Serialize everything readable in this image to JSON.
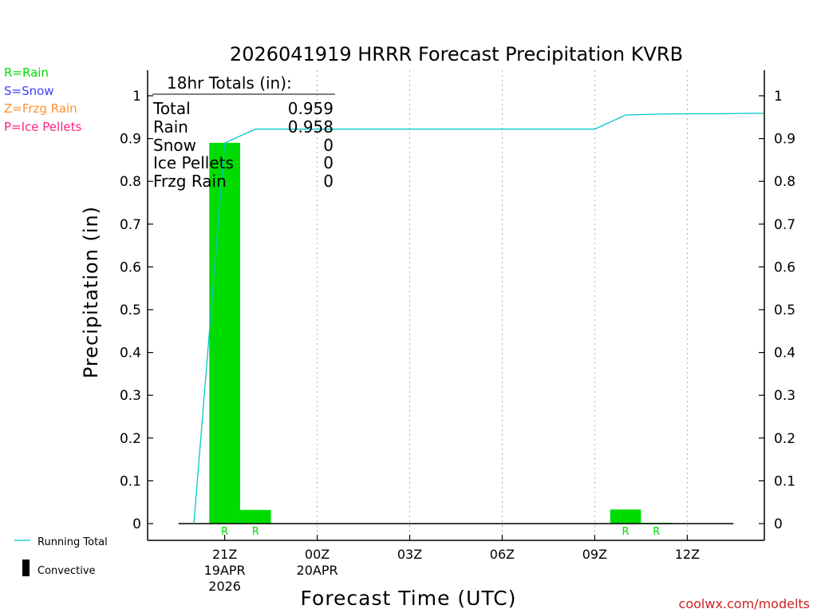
{
  "chart_data": {
    "type": "bar",
    "title": "2026041919 HRRR Forecast Precipitation KVRB",
    "xlabel": "Forecast Time (UTC)",
    "ylabel": "Precipitation (in)",
    "ylim": [
      0,
      1.05
    ],
    "yticks": [
      0,
      0.1,
      0.2,
      0.3,
      0.4,
      0.5,
      0.6,
      0.7,
      0.8,
      0.9,
      1
    ],
    "ytick_labels": [
      "0",
      "0.1",
      "0.2",
      "0.3",
      "0.4",
      "0.5",
      "0.6",
      "0.7",
      "0.8",
      "0.9",
      "1"
    ],
    "xlim_hours": [
      -1.5,
      18.5
    ],
    "xticks": [
      {
        "hour": 1,
        "line1": "21Z",
        "line2": "19APR",
        "line3": "2026"
      },
      {
        "hour": 4,
        "line1": "00Z",
        "line2": "20APR",
        "line3": ""
      },
      {
        "hour": 7,
        "line1": "03Z",
        "line2": "",
        "line3": ""
      },
      {
        "hour": 10,
        "line1": "06Z",
        "line2": "",
        "line3": ""
      },
      {
        "hour": 13,
        "line1": "09Z",
        "line2": "",
        "line3": ""
      },
      {
        "hour": 16,
        "line1": "12Z",
        "line2": "",
        "line3": ""
      }
    ],
    "bars": {
      "hours": [
        1,
        2,
        3,
        4,
        5,
        6,
        7,
        8,
        9,
        10,
        11,
        12,
        13,
        14,
        15,
        16,
        17
      ],
      "values": [
        0.89,
        0.032,
        0,
        0,
        0,
        0,
        0,
        0,
        0,
        0,
        0,
        0,
        0,
        0.033,
        0.002,
        0,
        0
      ],
      "ptype": [
        "R",
        "R",
        "",
        "",
        "",
        "",
        "",
        "",
        "",
        "",
        "",
        "",
        "",
        "R",
        "R",
        "",
        ""
      ],
      "color": "#00dc00"
    },
    "running_total": {
      "name": "Running Total",
      "color": "#00c8c8",
      "hours": [
        0,
        1,
        2,
        3,
        4,
        5,
        6,
        7,
        8,
        9,
        10,
        11,
        12,
        13,
        14,
        15,
        16,
        17,
        18
      ],
      "values": [
        0,
        0.89,
        0.922,
        0.922,
        0.922,
        0.922,
        0.922,
        0.922,
        0.922,
        0.922,
        0.922,
        0.922,
        0.922,
        0.922,
        0.955,
        0.957,
        0.958,
        0.958,
        0.959
      ]
    },
    "totals_box": {
      "header": "18hr Totals (in):",
      "rows": [
        {
          "label": "Total",
          "value": "0.959"
        },
        {
          "label": "Rain",
          "value": "0.958"
        },
        {
          "label": "Snow",
          "value": "0"
        },
        {
          "label": "Ice Pellets",
          "value": "0"
        },
        {
          "label": "Frzg Rain",
          "value": "0"
        }
      ]
    },
    "ptype_legend": [
      {
        "label": "R=Rain",
        "color": "#00dc00"
      },
      {
        "label": "S=Snow",
        "color": "#4040ff"
      },
      {
        "label": "Z=Frzg Rain",
        "color": "#ff9030"
      },
      {
        "label": "P=Ice Pellets",
        "color": "#ff2080"
      }
    ],
    "series_legend": {
      "running_total": "Running Total",
      "convective": "Convective"
    },
    "credit": "coolwx.com/modelts"
  }
}
